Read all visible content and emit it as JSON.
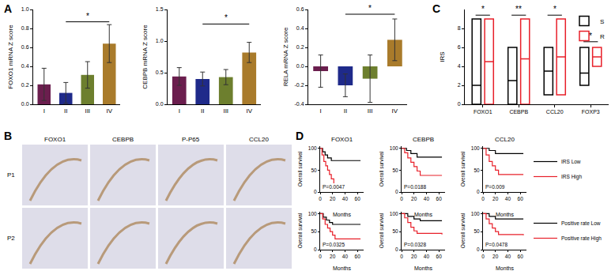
{
  "chart_data": [
    {
      "type": "bar",
      "annotations": [
        "A"
      ],
      "y_label": "FOXO1 mRNA Z score",
      "categories": [
        "I",
        "II",
        "III",
        "IV"
      ],
      "values": [
        0.21,
        0.12,
        0.31,
        0.64
      ],
      "errors": [
        0.17,
        0.11,
        0.14,
        0.2
      ],
      "colors": [
        "#6b1e4e",
        "#1f2a8a",
        "#6d7f2e",
        "#a97b2b"
      ],
      "ylim": [
        0,
        1
      ],
      "yticks": [
        {
          "value": 0,
          "label": "0.0"
        },
        0.2,
        0.4,
        0.6,
        0.8,
        {
          "value": 1,
          "label": "1.0"
        }
      ],
      "significance": [
        {
          "from": "II",
          "to": "IV",
          "y": 0.87,
          "text": "*"
        }
      ]
    },
    {
      "type": "bar",
      "y_label": "CEBPB mRNA Z score",
      "categories": [
        "I",
        "II",
        "III",
        "IV"
      ],
      "values": [
        0.44,
        0.4,
        0.43,
        0.82
      ],
      "errors": [
        0.14,
        0.11,
        0.12,
        0.16
      ],
      "colors": [
        "#6b1e4e",
        "#1f2a8a",
        "#6d7f2e",
        "#a97b2b"
      ],
      "ylim": [
        0,
        1.5
      ],
      "yticks": [
        {
          "value": 0,
          "label": "0.0"
        },
        0.5,
        {
          "value": 1,
          "label": "1.0"
        },
        1.5
      ],
      "significance": [
        {
          "from": "II",
          "to": "IV",
          "y": 1.27,
          "text": "*"
        }
      ]
    },
    {
      "type": "bar",
      "y_label": "RELA mRNA Z score",
      "categories": [
        "I",
        "II",
        "III",
        "IV"
      ],
      "values": [
        -0.05,
        -0.2,
        -0.13,
        0.28
      ],
      "errors": [
        0.17,
        0.12,
        0.25,
        0.22
      ],
      "colors": [
        "#6b1e4e",
        "#1f2a8a",
        "#6d7f2e",
        "#a97b2b"
      ],
      "ylim": [
        -0.4,
        0.6
      ],
      "yticks": [
        -0.4,
        -0.2,
        {
          "value": 0,
          "label": "0.0"
        },
        0.2,
        0.4,
        0.6
      ],
      "significance": [
        {
          "from": "II",
          "to": "IV",
          "y": 0.55,
          "text": "*"
        }
      ]
    },
    {
      "type": "image",
      "annotations": [
        "B"
      ],
      "columns": [
        "FOXO1",
        "CEBPB",
        "P-P65",
        "CCL20"
      ],
      "rows": [
        "P1",
        "P2"
      ]
    },
    {
      "type": "box",
      "annotations": [
        "C"
      ],
      "y_label": "IRS",
      "categories": [
        "FOXO1",
        "CEBPB",
        "CCL20",
        "FOXP3"
      ],
      "series": [
        {
          "name": "S",
          "color": "#000000",
          "min": [
            0,
            0,
            1,
            2
          ],
          "median": [
            2,
            2.5,
            3.5,
            3.3
          ],
          "max": [
            9,
            6,
            6,
            6
          ]
        },
        {
          "name": "R",
          "color": "#e8202a",
          "min": [
            0,
            0,
            1,
            4
          ],
          "median": [
            4.5,
            4.8,
            5,
            5
          ],
          "max": [
            9,
            9,
            9,
            6
          ]
        }
      ],
      "ylim": [
        0,
        10
      ],
      "yticks": [
        0,
        2,
        4,
        6,
        8
      ],
      "legend": "top right",
      "significance": [
        {
          "category": "FOXO1",
          "y": 9.4,
          "text": "*"
        },
        {
          "category": "CEBPB",
          "y": 9.4,
          "text": "**"
        },
        {
          "category": "CCL20",
          "y": 9.4,
          "text": "*"
        },
        {
          "category": "FOXP3",
          "y": 6.6,
          "text": "*"
        }
      ]
    },
    {
      "type": "line",
      "annotations": [
        "D"
      ],
      "title": "FOXO1",
      "x_label": "Months",
      "y_label": "Overall survival",
      "p_value": "P=0.0047",
      "line_style": "step",
      "xlim": [
        0,
        70
      ],
      "xticks": [
        0,
        20,
        40,
        60
      ],
      "ylim": [
        0,
        105
      ],
      "yticks": [
        0,
        50,
        100
      ],
      "series": [
        {
          "color": "#000000",
          "x": [
            0,
            4,
            8,
            12,
            18,
            65
          ],
          "values": [
            100,
            92,
            85,
            78,
            72,
            72
          ]
        },
        {
          "color": "#e8202a",
          "x": [
            0,
            3,
            6,
            9,
            12,
            15,
            18,
            22
          ],
          "values": [
            100,
            85,
            70,
            60,
            50,
            40,
            30,
            20
          ]
        }
      ]
    },
    {
      "type": "line",
      "title": "CEBPB",
      "x_label": "Months",
      "y_label": "Overall survival",
      "p_value": "P=0.0188",
      "line_style": "step",
      "xlim": [
        0,
        70
      ],
      "xticks": [
        0,
        20,
        40,
        60
      ],
      "ylim": [
        0,
        105
      ],
      "yticks": [
        0,
        50,
        100
      ],
      "series": [
        {
          "color": "#000000",
          "x": [
            0,
            8,
            15,
            25,
            65
          ],
          "values": [
            100,
            95,
            88,
            80,
            80
          ]
        },
        {
          "color": "#e8202a",
          "x": [
            0,
            5,
            10,
            15,
            20,
            25,
            30,
            65
          ],
          "values": [
            100,
            90,
            78,
            68,
            58,
            48,
            38,
            38
          ]
        }
      ]
    },
    {
      "type": "line",
      "title": "CCL20",
      "x_label": "Months",
      "y_label": "Overall survival",
      "p_value": "P=0.009",
      "line_style": "step",
      "xlim": [
        0,
        70
      ],
      "xticks": [
        0,
        20,
        40,
        60
      ],
      "ylim": [
        0,
        105
      ],
      "yticks": [
        0,
        50,
        100
      ],
      "legend": "right",
      "series": [
        {
          "name": "IRS Low",
          "color": "#000000",
          "x": [
            0,
            10,
            20,
            65
          ],
          "values": [
            100,
            95,
            88,
            88
          ]
        },
        {
          "name": "IRS High",
          "color": "#e8202a",
          "x": [
            0,
            5,
            10,
            15,
            20,
            25,
            65
          ],
          "values": [
            100,
            85,
            70,
            60,
            50,
            40,
            40
          ]
        }
      ]
    },
    {
      "type": "line",
      "x_label": "Months",
      "y_label": "Overall survival",
      "p_value": "P=0.0325",
      "line_style": "step",
      "xlim": [
        0,
        70
      ],
      "xticks": [
        0,
        20,
        40,
        60
      ],
      "ylim": [
        0,
        105
      ],
      "yticks": [
        0,
        50,
        100
      ],
      "series": [
        {
          "color": "#000000",
          "x": [
            0,
            5,
            10,
            15,
            20,
            65
          ],
          "values": [
            100,
            90,
            82,
            75,
            70,
            70
          ]
        },
        {
          "color": "#e8202a",
          "x": [
            0,
            4,
            8,
            12,
            16,
            20,
            24,
            65
          ],
          "values": [
            100,
            85,
            70,
            60,
            50,
            40,
            30,
            30
          ]
        }
      ]
    },
    {
      "type": "line",
      "x_label": "Months",
      "y_label": "Overall survival",
      "p_value": "P=0.0328",
      "line_style": "step",
      "xlim": [
        0,
        70
      ],
      "xticks": [
        0,
        20,
        40,
        60
      ],
      "ylim": [
        0,
        105
      ],
      "yticks": [
        0,
        50,
        100
      ],
      "series": [
        {
          "color": "#000000",
          "x": [
            0,
            10,
            20,
            30,
            65
          ],
          "values": [
            100,
            92,
            85,
            80,
            80
          ]
        },
        {
          "color": "#e8202a",
          "x": [
            0,
            5,
            10,
            15,
            20,
            25,
            65
          ],
          "values": [
            100,
            88,
            75,
            62,
            52,
            45,
            42
          ]
        }
      ]
    },
    {
      "type": "line",
      "x_label": "Months",
      "y_label": "Overall survival",
      "p_value": "P=0.0478",
      "line_style": "step",
      "xlim": [
        0,
        70
      ],
      "xticks": [
        0,
        20,
        40,
        60
      ],
      "ylim": [
        0,
        105
      ],
      "yticks": [
        0,
        50,
        100
      ],
      "legend": "right",
      "series": [
        {
          "name": "Positive rate Low",
          "color": "#000000",
          "x": [
            0,
            10,
            20,
            65
          ],
          "values": [
            100,
            92,
            85,
            85
          ]
        },
        {
          "name": "Positive rate High",
          "color": "#e8202a",
          "x": [
            0,
            5,
            10,
            15,
            20,
            25,
            65
          ],
          "values": [
            100,
            85,
            72,
            60,
            50,
            42,
            40
          ]
        }
      ]
    }
  ]
}
